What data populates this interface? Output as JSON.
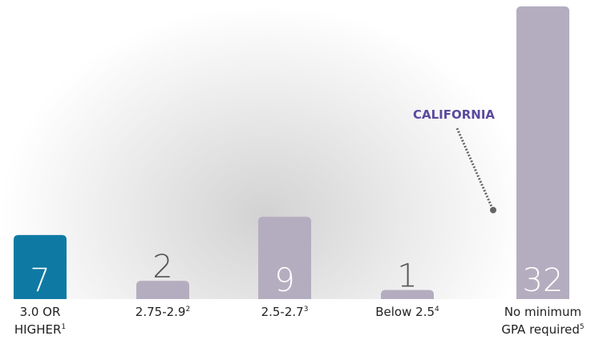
{
  "chart_data": {
    "type": "bar",
    "categories": [
      "3.0 OR HIGHER",
      "2.75-2.9",
      "2.5-2.7",
      "Below 2.5",
      "No minimum GPA required"
    ],
    "footnotes": [
      "1",
      "2",
      "3",
      "4",
      "5"
    ],
    "values": [
      7,
      2,
      9,
      1,
      32
    ],
    "colors": [
      "#0e7aa3",
      "#b4adbf",
      "#b4adbf",
      "#b4adbf",
      "#b4adbf"
    ],
    "annotation": "CALIFORNIA"
  }
}
